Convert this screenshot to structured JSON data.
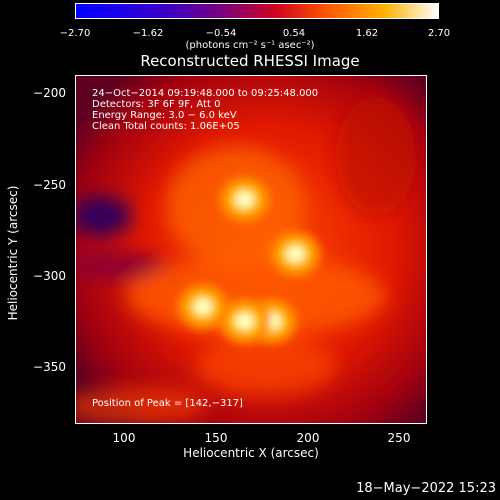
{
  "colorbar": {
    "ticks": [
      "−2.70",
      "−1.62",
      "−0.54",
      "0.54",
      "1.62",
      "2.70"
    ],
    "units": "(photons cm⁻² s⁻¹ asec⁻²)"
  },
  "title": "Reconstructed RHESSI Image",
  "annotations": {
    "time": "24−Oct−2014 09:19:48.000 to 09:25:48.000",
    "detectors": "Detectors: 3F 6F 9F, Att 0",
    "energy": "Energy Range: 3.0 − 6.0 keV",
    "algorithm": "Clean    Total counts: 1.06E+05",
    "peak": "Position of Peak = [142,−317]"
  },
  "axes": {
    "xlabel": "Heliocentric X (arcsec)",
    "ylabel": "Heliocentric Y (arcsec)",
    "xticks": [
      "100",
      "150",
      "200",
      "250"
    ],
    "yticks": [
      "−200",
      "−250",
      "−300",
      "−350"
    ]
  },
  "chart_data": {
    "type": "heatmap",
    "title": "Reconstructed RHESSI Image",
    "xlabel": "Heliocentric X (arcsec)",
    "ylabel": "Heliocentric Y (arcsec)",
    "xlim": [
      72,
      265
    ],
    "ylim": [
      -381,
      -190
    ],
    "colorbar_range": [
      -2.7,
      2.7
    ],
    "colormap": "hot",
    "peak": [
      142,
      -317
    ],
    "sources": [
      {
        "x": 142,
        "y": -317
      },
      {
        "x": 165,
        "y": -258
      },
      {
        "x": 193,
        "y": -288
      },
      {
        "x": 180,
        "y": -325
      },
      {
        "x": 165,
        "y": -325
      }
    ]
  },
  "footer": {
    "date": "18−May−2022 15:23"
  }
}
